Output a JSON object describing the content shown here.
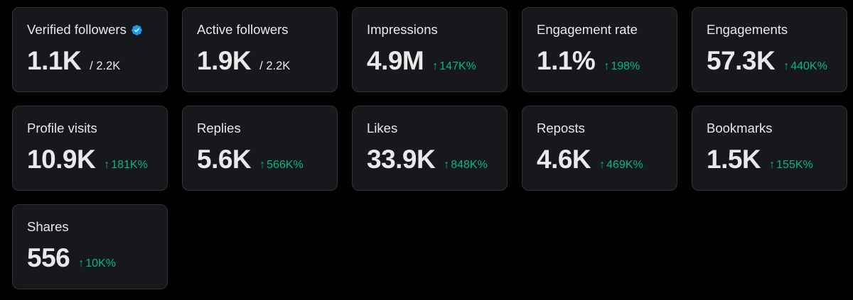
{
  "colors": {
    "background": "#000000",
    "card_background": "#16181c",
    "card_border": "#2f3336",
    "text": "#e7e9ea",
    "positive_change": "#00ba7c",
    "verified_badge": "#1d9bf0"
  },
  "icons": {
    "verified": "verified-badge-icon",
    "change": "arrow-up-icon"
  },
  "arrow_glyph": "↑",
  "cards": [
    {
      "label": "Verified followers",
      "value": "1.1K",
      "total": "/ 2.2K",
      "change": ""
    },
    {
      "label": "Active followers",
      "value": "1.9K",
      "total": "/ 2.2K",
      "change": ""
    },
    {
      "label": "Impressions",
      "value": "4.9M",
      "total": "",
      "change": "147K%"
    },
    {
      "label": "Engagement rate",
      "value": "1.1%",
      "total": "",
      "change": "198%"
    },
    {
      "label": "Engagements",
      "value": "57.3K",
      "total": "",
      "change": "440K%"
    },
    {
      "label": "Profile visits",
      "value": "10.9K",
      "total": "",
      "change": "181K%"
    },
    {
      "label": "Replies",
      "value": "5.6K",
      "total": "",
      "change": "566K%"
    },
    {
      "label": "Likes",
      "value": "33.9K",
      "total": "",
      "change": "848K%"
    },
    {
      "label": "Reposts",
      "value": "4.6K",
      "total": "",
      "change": "469K%"
    },
    {
      "label": "Bookmarks",
      "value": "1.5K",
      "total": "",
      "change": "155K%"
    },
    {
      "label": "Shares",
      "value": "556",
      "total": "",
      "change": "10K%"
    }
  ]
}
